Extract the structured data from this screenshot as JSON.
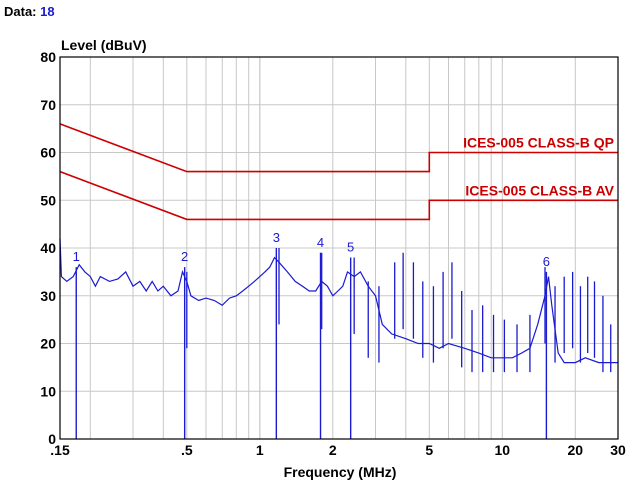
{
  "header": {
    "label": "Data:",
    "value": "18"
  },
  "chart_data": {
    "type": "line",
    "ylabel": "Level (dBuV)",
    "xlabel": "Frequency (MHz)",
    "x_scale": "log",
    "xlim": [
      0.15,
      30
    ],
    "ylim": [
      0,
      80
    ],
    "grid": true,
    "x_ticks": [
      {
        "value": 0.15,
        "label": ".15"
      },
      {
        "value": 0.5,
        "label": ".5"
      },
      {
        "value": 1,
        "label": "1"
      },
      {
        "value": 2,
        "label": "2"
      },
      {
        "value": 5,
        "label": "5"
      },
      {
        "value": 10,
        "label": "10"
      },
      {
        "value": 20,
        "label": "20"
      },
      {
        "value": 30,
        "label": "30"
      }
    ],
    "y_ticks": [
      0,
      10,
      20,
      30,
      40,
      50,
      60,
      70,
      80
    ],
    "limits": [
      {
        "name": "ICES-005 CLASS-B QP",
        "color": "#cc0000",
        "points": [
          [
            0.15,
            66
          ],
          [
            0.5,
            56
          ],
          [
            5,
            56
          ],
          [
            5,
            60
          ],
          [
            30,
            60
          ]
        ]
      },
      {
        "name": "ICES-005 CLASS-B AV",
        "color": "#cc0000",
        "points": [
          [
            0.15,
            56
          ],
          [
            0.5,
            46
          ],
          [
            5,
            46
          ],
          [
            5,
            50
          ],
          [
            30,
            50
          ]
        ]
      }
    ],
    "trace": {
      "color": "#1a1ad0",
      "points": [
        [
          0.15,
          42
        ],
        [
          0.152,
          34
        ],
        [
          0.16,
          33
        ],
        [
          0.17,
          34
        ],
        [
          0.18,
          36.5
        ],
        [
          0.19,
          35
        ],
        [
          0.2,
          34
        ],
        [
          0.21,
          32
        ],
        [
          0.22,
          34
        ],
        [
          0.24,
          33
        ],
        [
          0.26,
          33.5
        ],
        [
          0.28,
          35
        ],
        [
          0.3,
          32
        ],
        [
          0.32,
          33
        ],
        [
          0.34,
          31
        ],
        [
          0.36,
          33
        ],
        [
          0.38,
          31
        ],
        [
          0.4,
          32
        ],
        [
          0.43,
          30
        ],
        [
          0.46,
          31
        ],
        [
          0.48,
          35
        ],
        [
          0.5,
          33
        ],
        [
          0.52,
          30
        ],
        [
          0.56,
          29
        ],
        [
          0.6,
          29.5
        ],
        [
          0.65,
          29
        ],
        [
          0.7,
          28
        ],
        [
          0.75,
          29.5
        ],
        [
          0.8,
          30
        ],
        [
          0.85,
          31
        ],
        [
          0.9,
          32
        ],
        [
          0.95,
          33
        ],
        [
          1.0,
          34
        ],
        [
          1.05,
          35
        ],
        [
          1.1,
          36
        ],
        [
          1.15,
          38
        ],
        [
          1.2,
          37
        ],
        [
          1.3,
          35
        ],
        [
          1.4,
          33
        ],
        [
          1.5,
          32
        ],
        [
          1.6,
          31
        ],
        [
          1.7,
          31
        ],
        [
          1.8,
          33
        ],
        [
          1.9,
          32
        ],
        [
          2.0,
          30
        ],
        [
          2.1,
          31
        ],
        [
          2.2,
          32
        ],
        [
          2.3,
          35
        ],
        [
          2.45,
          34
        ],
        [
          2.6,
          35
        ],
        [
          2.8,
          32
        ],
        [
          3.0,
          30
        ],
        [
          3.2,
          24
        ],
        [
          3.5,
          22
        ],
        [
          4.0,
          21
        ],
        [
          4.5,
          20
        ],
        [
          5.0,
          20
        ],
        [
          5.5,
          19
        ],
        [
          6.0,
          20
        ],
        [
          7.0,
          19
        ],
        [
          8.0,
          18
        ],
        [
          9.0,
          17
        ],
        [
          10,
          17
        ],
        [
          11,
          17
        ],
        [
          12,
          18
        ],
        [
          13,
          19
        ],
        [
          14,
          24
        ],
        [
          15,
          30
        ],
        [
          15.5,
          34
        ],
        [
          16,
          28
        ],
        [
          17,
          18
        ],
        [
          18,
          16
        ],
        [
          20,
          16
        ],
        [
          22,
          17
        ],
        [
          25,
          16
        ],
        [
          28,
          16
        ],
        [
          30,
          16
        ]
      ]
    },
    "spikes": [
      {
        "x": 0.5,
        "y": 35
      },
      {
        "x": 1.2,
        "y": 40
      },
      {
        "x": 1.8,
        "y": 39
      },
      {
        "x": 2.45,
        "y": 38
      },
      {
        "x": 2.8,
        "y": 33
      },
      {
        "x": 3.1,
        "y": 32
      },
      {
        "x": 3.6,
        "y": 37
      },
      {
        "x": 3.9,
        "y": 39
      },
      {
        "x": 4.3,
        "y": 37
      },
      {
        "x": 4.7,
        "y": 33
      },
      {
        "x": 5.2,
        "y": 32
      },
      {
        "x": 5.7,
        "y": 35
      },
      {
        "x": 6.2,
        "y": 37
      },
      {
        "x": 6.8,
        "y": 31
      },
      {
        "x": 7.5,
        "y": 27
      },
      {
        "x": 8.3,
        "y": 28
      },
      {
        "x": 9.2,
        "y": 26
      },
      {
        "x": 10.2,
        "y": 25
      },
      {
        "x": 11.5,
        "y": 24
      },
      {
        "x": 13.0,
        "y": 26
      },
      {
        "x": 15.0,
        "y": 36
      },
      {
        "x": 16.5,
        "y": 32
      },
      {
        "x": 18.0,
        "y": 34
      },
      {
        "x": 19.5,
        "y": 35
      },
      {
        "x": 21.0,
        "y": 32
      },
      {
        "x": 22.5,
        "y": 34
      },
      {
        "x": 24.0,
        "y": 33
      },
      {
        "x": 26.0,
        "y": 30
      },
      {
        "x": 28.0,
        "y": 24
      }
    ],
    "markers": [
      {
        "label": "1",
        "x": 0.175,
        "y": 36
      },
      {
        "label": "2",
        "x": 0.49,
        "y": 36
      },
      {
        "label": "3",
        "x": 1.17,
        "y": 40
      },
      {
        "label": "4",
        "x": 1.78,
        "y": 39
      },
      {
        "label": "5",
        "x": 2.37,
        "y": 38
      },
      {
        "label": "6",
        "x": 15.2,
        "y": 35
      }
    ]
  }
}
